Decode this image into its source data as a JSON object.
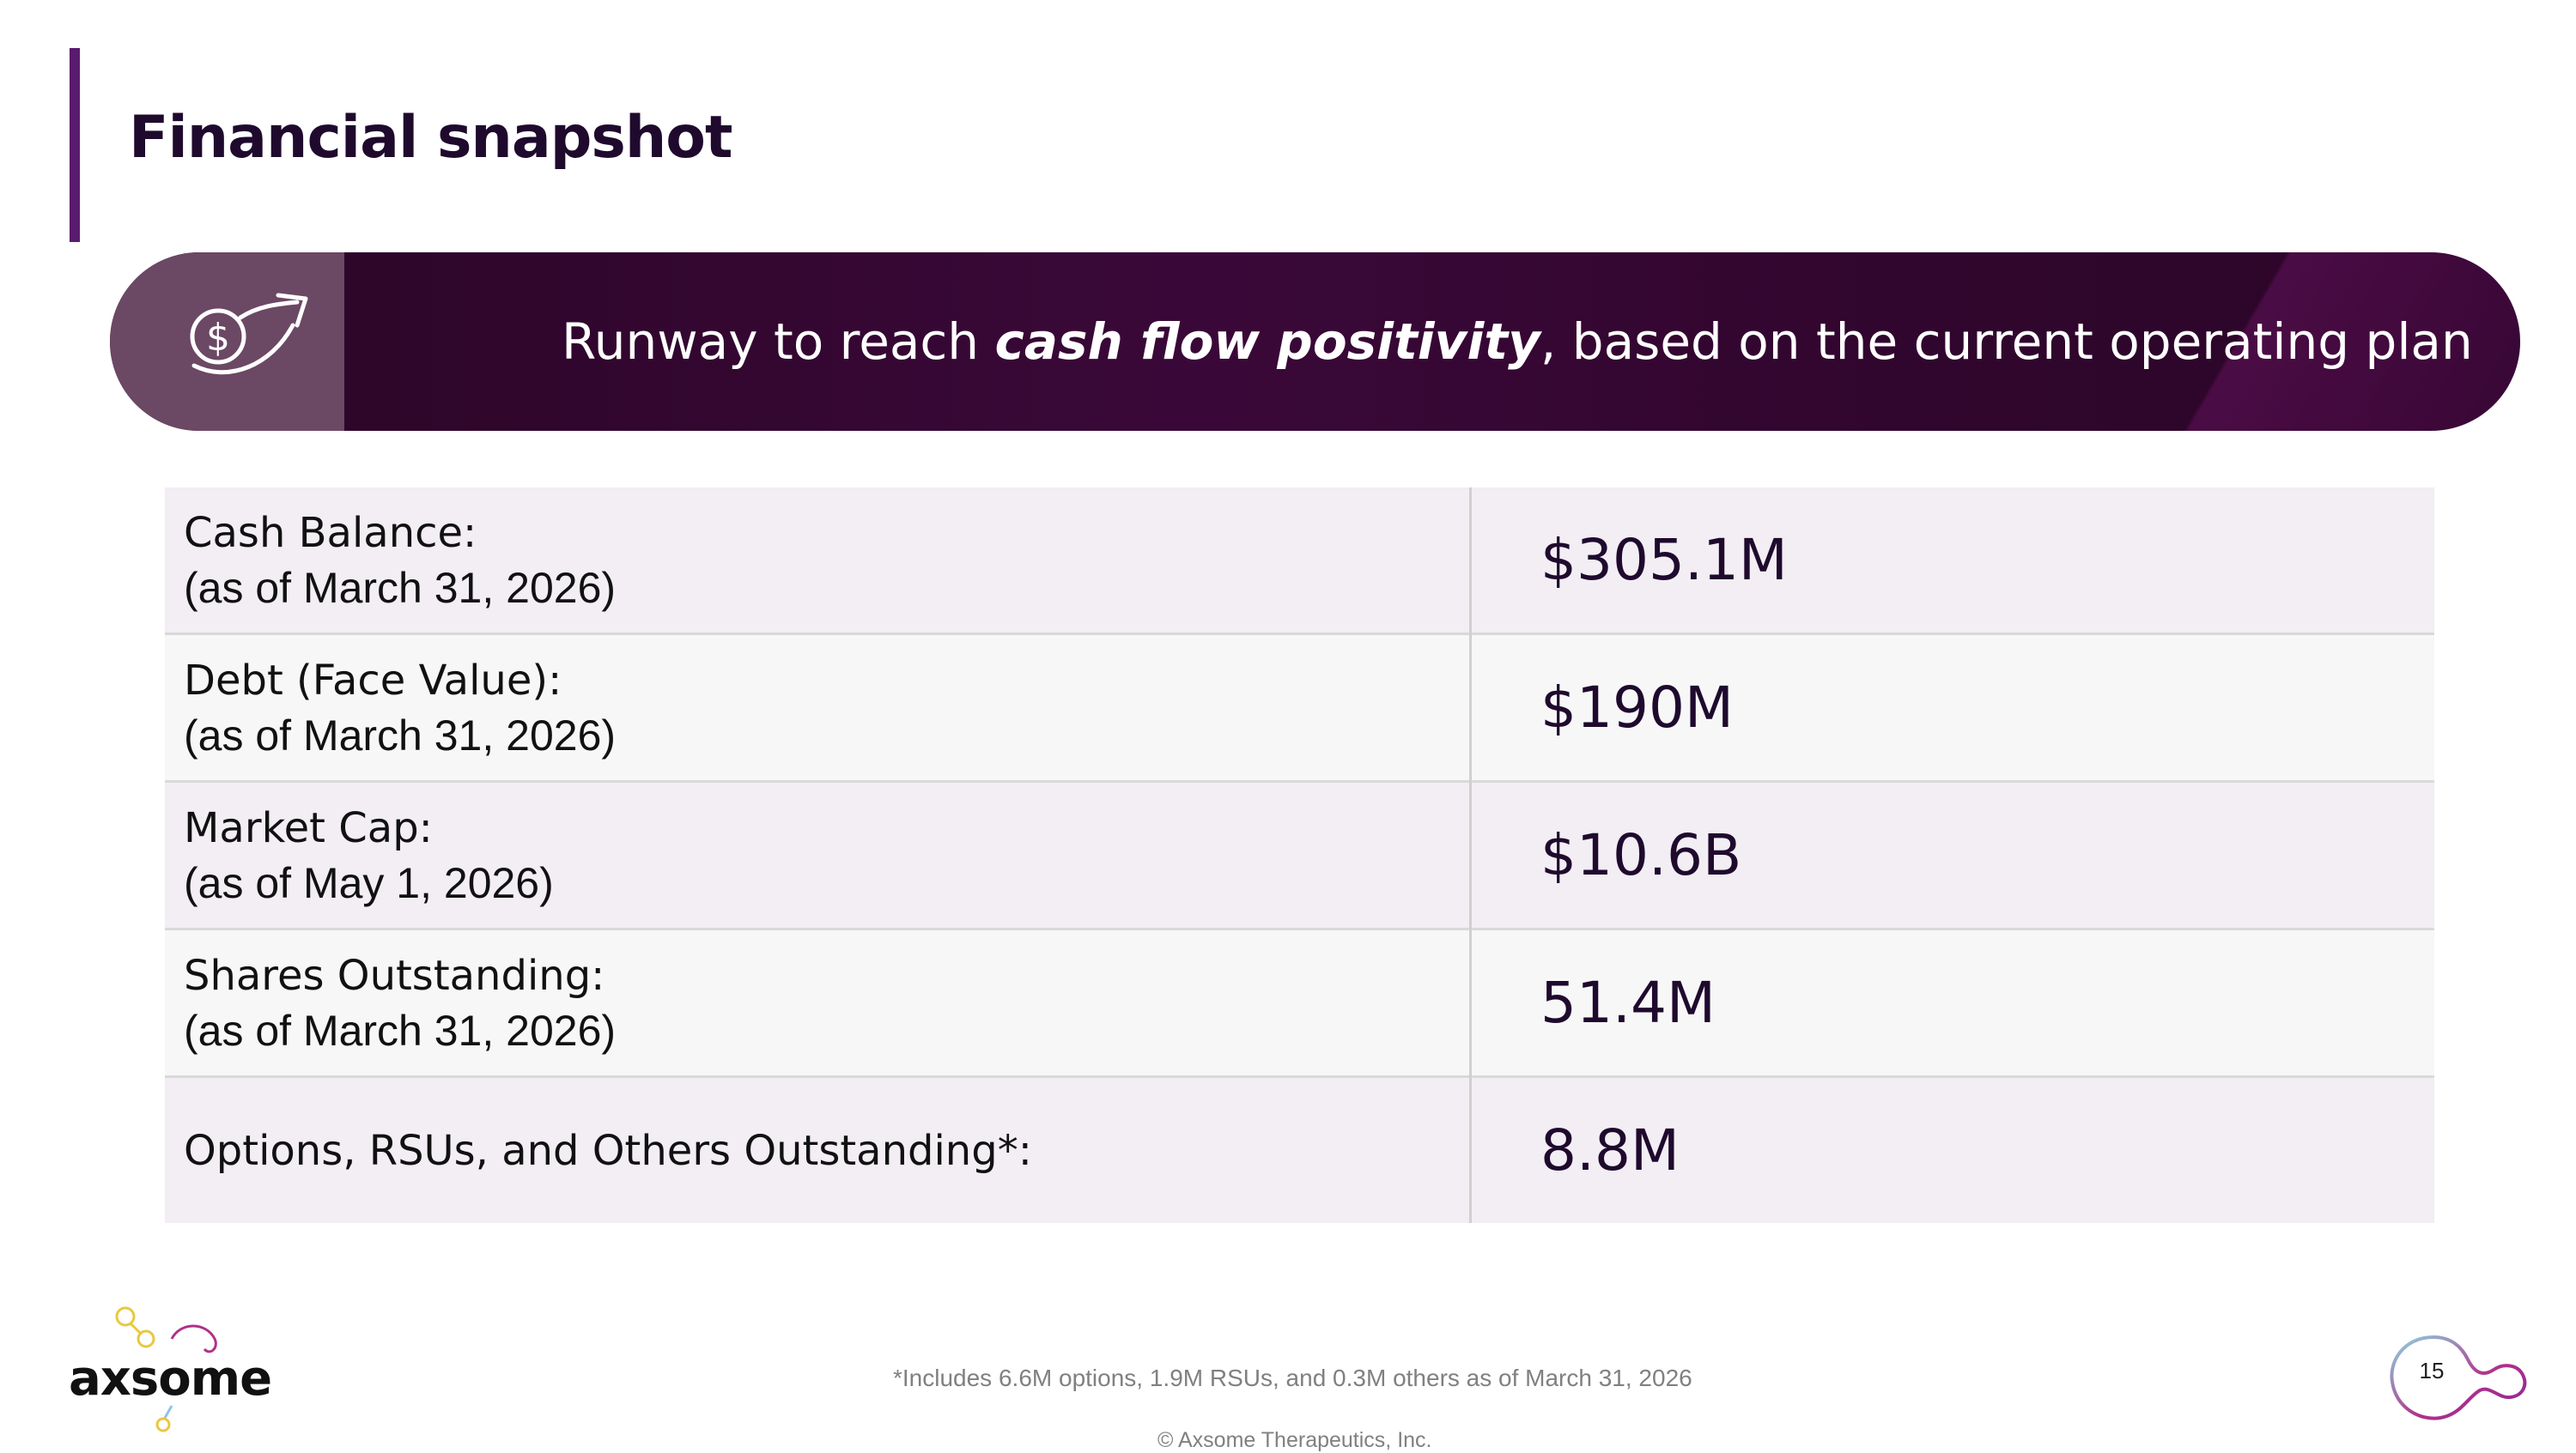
{
  "header": {
    "title": "Financial snapshot"
  },
  "banner": {
    "icon": "dollar-arrow-icon",
    "text_before": "Runway to reach ",
    "text_emphasis": "cash flow positivity",
    "text_after": ", based on the current operating plan"
  },
  "table": {
    "rows": [
      {
        "label": "Cash Balance:",
        "sublabel": "(as of March 31, 2026)",
        "value": "$305.1M"
      },
      {
        "label": "Debt (Face Value):",
        "sublabel": "(as of March 31, 2026)",
        "value": "$190M"
      },
      {
        "label": "Market Cap:",
        "sublabel": "(as of May 1, 2026)",
        "value": "$10.6B"
      },
      {
        "label": "Shares Outstanding:",
        "sublabel": "(as of March 31, 2026)",
        "value": "51.4M"
      },
      {
        "label": "Options, RSUs, and Others Outstanding*:",
        "sublabel": "",
        "value": "8.8M"
      }
    ]
  },
  "footer": {
    "footnote": "*Includes 6.6M options, 1.9M RSUs, and 0.3M others as of March 31, 2026",
    "copyright": "© Axsome Therapeutics, Inc.",
    "logo_text": "axsome",
    "page_number": "15"
  },
  "colors": {
    "accent": "#5a1a6e",
    "banner": "#3a0838",
    "title": "#1f0a2e"
  }
}
